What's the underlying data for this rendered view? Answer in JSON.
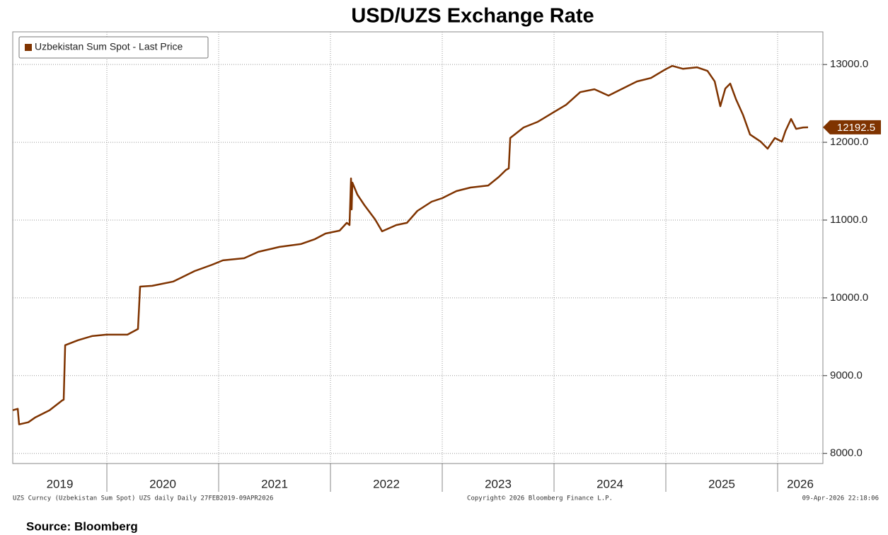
{
  "chart_data": {
    "type": "line",
    "title": "USD/UZS Exchange Rate",
    "x": [
      2019.158,
      2019.203,
      2019.215,
      2019.297,
      2019.361,
      2019.487,
      2019.601,
      2019.614,
      2019.627,
      2019.741,
      2019.867,
      2019.994,
      2020.184,
      2020.278,
      2020.297,
      2020.405,
      2020.595,
      2020.785,
      2020.943,
      2021.038,
      2021.228,
      2021.354,
      2021.544,
      2021.734,
      2021.861,
      2021.956,
      2022.082,
      2022.146,
      2022.171,
      2022.184,
      2022.19,
      2022.196,
      2022.241,
      2022.304,
      2022.399,
      2022.462,
      2022.589,
      2022.684,
      2022.778,
      2022.905,
      2023.0,
      2023.127,
      2023.253,
      2023.411,
      2023.506,
      2023.57,
      2023.595,
      2023.608,
      2023.728,
      2023.854,
      2023.981,
      2024.108,
      2024.234,
      2024.361,
      2024.487,
      2024.614,
      2024.741,
      2024.867,
      2024.994,
      2025.057,
      2025.152,
      2025.278,
      2025.373,
      2025.437,
      2025.487,
      2025.532,
      2025.576,
      2025.627,
      2025.69,
      2025.753,
      2025.848,
      2025.911,
      2025.975,
      2026.038,
      2026.07,
      2026.12,
      2026.165,
      2026.228,
      2026.272
    ],
    "series": [
      {
        "name": "Uzbekistan Sum Spot - Last Price",
        "color": "#7f3300",
        "values": [
          8555,
          8573,
          8373,
          8400,
          8464,
          8555,
          8682,
          8691,
          9391,
          9455,
          9509,
          9527,
          9527,
          9600,
          10145,
          10155,
          10210,
          10345,
          10427,
          10482,
          10509,
          10591,
          10655,
          10691,
          10755,
          10827,
          10864,
          10964,
          10936,
          11536,
          11136,
          11482,
          11327,
          11191,
          11009,
          10855,
          10936,
          10964,
          11118,
          11236,
          11282,
          11373,
          11418,
          11445,
          11555,
          11645,
          11664,
          12055,
          12191,
          12264,
          12373,
          12482,
          12645,
          12682,
          12600,
          12691,
          12782,
          12827,
          12936,
          12982,
          12945,
          12964,
          12918,
          12782,
          12464,
          12691,
          12755,
          12555,
          12355,
          12100,
          12009,
          11918,
          12055,
          12009,
          12145,
          12300,
          12173,
          12191,
          12192.5
        ]
      }
    ],
    "xlim": [
      2019.158,
      2026.405
    ],
    "xticks": [
      2019,
      2020,
      2021,
      2022,
      2023,
      2024,
      2025,
      2026
    ],
    "ylim": [
      7870,
      13420
    ],
    "yticks": [
      {
        "value": 8000,
        "label": "8000.0"
      },
      {
        "value": 9000,
        "label": "9000.0"
      },
      {
        "value": 10000,
        "label": "10000.0"
      },
      {
        "value": 11000,
        "label": "11000.0"
      },
      {
        "value": 12000,
        "label": "12000.0"
      },
      {
        "value": 13000,
        "label": "13000.0"
      }
    ],
    "grid": true,
    "legend": "top-left",
    "footer_left": "UZS Curncy (Uzbekistan Sum Spot) UZS daily Daily 27FEB2019-09APR2026",
    "footer_center": "Copyright© 2026 Bloomberg Finance L.P.",
    "footer_right": "09-Apr-2026 22:18:06",
    "source": "Source: Bloomberg"
  }
}
